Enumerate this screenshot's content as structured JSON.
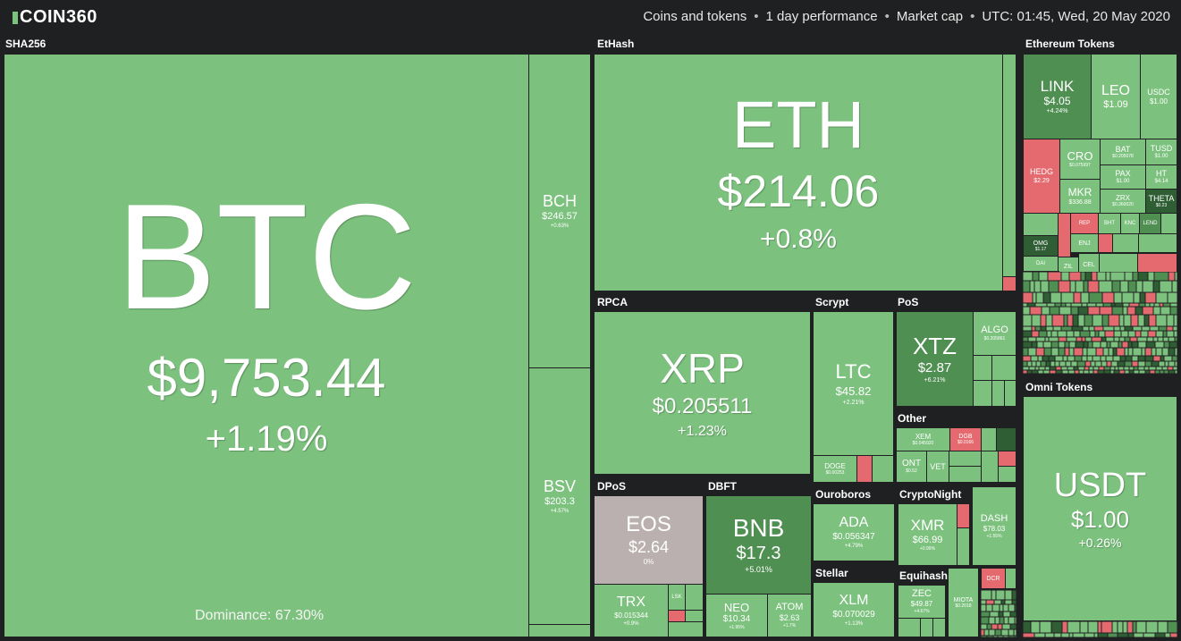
{
  "brand": {
    "name": "COIN360"
  },
  "header": {
    "items": [
      "Coins and tokens",
      "1 day performance",
      "Market cap",
      "UTC: 01:45, Wed, 20 May 2020"
    ]
  },
  "sectors": {
    "sha256": "SHA256",
    "ethash": "EtHash",
    "ethereum_tokens": "Ethereum Tokens",
    "rpca": "RPCA",
    "scrypt": "Scrypt",
    "pos": "PoS",
    "other": "Other",
    "dpos": "DPoS",
    "dbft": "DBFT",
    "ouroboros": "Ouroboros",
    "cryptonight": "CryptoNight",
    "stellar": "Stellar",
    "equihash": "Equihash",
    "omni_tokens": "Omni Tokens"
  },
  "coins": {
    "btc": {
      "sym": "BTC",
      "price": "$9,753.44",
      "chg": "+1.19%"
    },
    "bch": {
      "sym": "BCH",
      "price": "$246.57",
      "chg": "+0.63%"
    },
    "bsv": {
      "sym": "BSV",
      "price": "$203.3",
      "chg": "+4.57%"
    },
    "eth": {
      "sym": "ETH",
      "price": "$214.06",
      "chg": "+0.8%"
    },
    "xrp": {
      "sym": "XRP",
      "price": "$0.205511",
      "chg": "+1.23%"
    },
    "ltc": {
      "sym": "LTC",
      "price": "$45.82",
      "chg": "+2.21%"
    },
    "doge": {
      "sym": "DOGE",
      "price": "$0.00253",
      "chg": ""
    },
    "xtz": {
      "sym": "XTZ",
      "price": "$2.87",
      "chg": "+6.21%"
    },
    "algo": {
      "sym": "ALGO",
      "price": "$0.205861",
      "chg": ""
    },
    "xem": {
      "sym": "XEM",
      "price": "$0.045920",
      "chg": ""
    },
    "dgb": {
      "sym": "DGB",
      "price": "$0.0166",
      "chg": ""
    },
    "ont": {
      "sym": "ONT",
      "price": "$0.52",
      "chg": ""
    },
    "vet": {
      "sym": "VET",
      "price": "$0.0045",
      "chg": ""
    },
    "eos": {
      "sym": "EOS",
      "price": "$2.64",
      "chg": "0%"
    },
    "trx": {
      "sym": "TRX",
      "price": "$0.015344",
      "chg": "+0.9%"
    },
    "lsk": {
      "sym": "LSK"
    },
    "bnb": {
      "sym": "BNB",
      "price": "$17.3",
      "chg": "+5.01%"
    },
    "neo": {
      "sym": "NEO",
      "price": "$10.34",
      "chg": "+1.95%"
    },
    "atom": {
      "sym": "ATOM",
      "price": "$2.63",
      "chg": "+1.7%"
    },
    "ada": {
      "sym": "ADA",
      "price": "$0.056347",
      "chg": "+4.79%"
    },
    "xmr": {
      "sym": "XMR",
      "price": "$66.99",
      "chg": "+0.99%"
    },
    "dash": {
      "sym": "DASH",
      "price": "$78.03",
      "chg": "+1.55%"
    },
    "xlm": {
      "sym": "XLM",
      "price": "$0.070029",
      "chg": "+1.13%"
    },
    "zec": {
      "sym": "ZEC",
      "price": "$49.87",
      "chg": "+4.67%"
    },
    "miota": {
      "sym": "MIOTA",
      "price": "$0.2018",
      "chg": ""
    },
    "dcr": {
      "sym": "DCR",
      "price": "",
      "chg": ""
    },
    "usdt": {
      "sym": "USDT",
      "price": "$1.00",
      "chg": "+0.26%"
    },
    "link": {
      "sym": "LINK",
      "price": "$4.05",
      "chg": "+4.24%"
    },
    "leo": {
      "sym": "LEO",
      "price": "$1.09",
      "chg": ""
    },
    "usdc": {
      "sym": "USDC",
      "price": "$1.00",
      "chg": ""
    },
    "hedg": {
      "sym": "HEDG",
      "price": "$2.29",
      "chg": ""
    },
    "cro": {
      "sym": "CRO",
      "price": "$0.075997",
      "chg": ""
    },
    "bat": {
      "sym": "BAT",
      "price": "$0.205078",
      "chg": ""
    },
    "tusd": {
      "sym": "TUSD",
      "price": "$1.00",
      "chg": ""
    },
    "mkr": {
      "sym": "MKR",
      "price": "$336.88",
      "chg": ""
    },
    "pax": {
      "sym": "PAX",
      "price": "$1.00",
      "chg": ""
    },
    "ht": {
      "sym": "HT",
      "price": "$4.14",
      "chg": ""
    },
    "zrx": {
      "sym": "ZRX",
      "price": "$0.360020",
      "chg": ""
    },
    "theta": {
      "sym": "THETA",
      "price": "$0.23",
      "chg": ""
    },
    "omg": {
      "sym": "OMG",
      "price": "$1.17"
    },
    "snx": {
      "sym": "SNX"
    },
    "knc": {
      "sym": "KNC"
    },
    "rep": {
      "sym": "REP"
    },
    "lend": {
      "sym": "LEND"
    },
    "enj": {
      "sym": "ENJ"
    },
    "zil": {
      "sym": "ZIL"
    },
    "cel": {
      "sym": "CEL"
    },
    "zb": {
      "sym": "ZB"
    },
    "bnt": {
      "sym": "BHT"
    },
    "dai": {
      "sym": "DAI"
    }
  },
  "dominance": "Dominance: 67.30%",
  "colors": {
    "green": "#7cc27e",
    "dark_green": "#4f8f52",
    "darker_green": "#2f5e34",
    "red": "#e56a6f",
    "gray": "#bab0b0",
    "background": "#1f2021"
  }
}
